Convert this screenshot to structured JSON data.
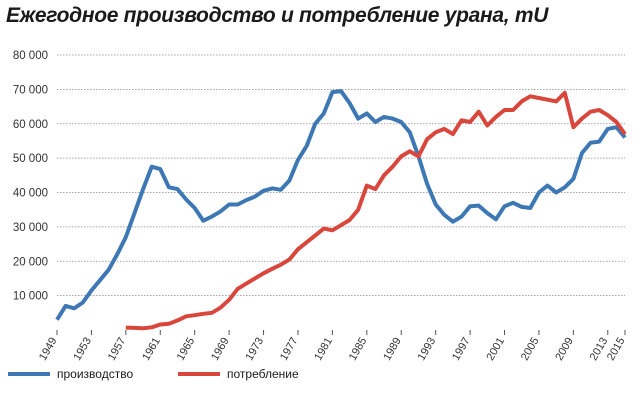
{
  "title": "Ежегодное производство и потребление урана, тU",
  "chart_data": {
    "type": "line",
    "ylim": [
      0,
      80000
    ],
    "xlim": [
      1949,
      2015
    ],
    "yticks": [
      10000,
      20000,
      30000,
      40000,
      50000,
      60000,
      70000,
      80000
    ],
    "ytick_labels": [
      "10 000",
      "20 000",
      "30 000",
      "40 000",
      "50 000",
      "60 000",
      "70 000",
      "80 000"
    ],
    "xticks": [
      "1949",
      "1953",
      "1957",
      "1961",
      "1965",
      "1969",
      "1973",
      "1977",
      "1981",
      "1985",
      "1989",
      "1993",
      "1997",
      "2001",
      "2005",
      "2009",
      "2013",
      "2015"
    ],
    "grid": true,
    "legend_position": "bottom",
    "series": [
      {
        "name": "производство",
        "color": "#3d78b4",
        "points": [
          [
            1949,
            3000
          ],
          [
            1950,
            7000
          ],
          [
            1951,
            6300
          ],
          [
            1952,
            8000
          ],
          [
            1953,
            11500
          ],
          [
            1954,
            14500
          ],
          [
            1955,
            17500
          ],
          [
            1956,
            22000
          ],
          [
            1957,
            27000
          ],
          [
            1958,
            34000
          ],
          [
            1959,
            41000
          ],
          [
            1960,
            47500
          ],
          [
            1961,
            46800
          ],
          [
            1962,
            41500
          ],
          [
            1963,
            41000
          ],
          [
            1964,
            38000
          ],
          [
            1965,
            35500
          ],
          [
            1966,
            31800
          ],
          [
            1967,
            33000
          ],
          [
            1968,
            34500
          ],
          [
            1969,
            36500
          ],
          [
            1970,
            36500
          ],
          [
            1971,
            37800
          ],
          [
            1972,
            38800
          ],
          [
            1973,
            40500
          ],
          [
            1974,
            41200
          ],
          [
            1975,
            40800
          ],
          [
            1976,
            43500
          ],
          [
            1977,
            49500
          ],
          [
            1978,
            53500
          ],
          [
            1979,
            60000
          ],
          [
            1980,
            63000
          ],
          [
            1981,
            69200
          ],
          [
            1982,
            69500
          ],
          [
            1983,
            66000
          ],
          [
            1984,
            61500
          ],
          [
            1985,
            63000
          ],
          [
            1986,
            60500
          ],
          [
            1987,
            62000
          ],
          [
            1988,
            61500
          ],
          [
            1989,
            60500
          ],
          [
            1990,
            57500
          ],
          [
            1991,
            50500
          ],
          [
            1992,
            42500
          ],
          [
            1993,
            36500
          ],
          [
            1994,
            33500
          ],
          [
            1995,
            31500
          ],
          [
            1996,
            33000
          ],
          [
            1997,
            36000
          ],
          [
            1998,
            36200
          ],
          [
            1999,
            34000
          ],
          [
            2000,
            32200
          ],
          [
            2001,
            36000
          ],
          [
            2002,
            37000
          ],
          [
            2003,
            35800
          ],
          [
            2004,
            35500
          ],
          [
            2005,
            40000
          ],
          [
            2006,
            42000
          ],
          [
            2007,
            40000
          ],
          [
            2008,
            41500
          ],
          [
            2009,
            44000
          ],
          [
            2010,
            51500
          ],
          [
            2011,
            54500
          ],
          [
            2012,
            54800
          ],
          [
            2013,
            58500
          ],
          [
            2014,
            59000
          ],
          [
            2015,
            56000
          ]
        ]
      },
      {
        "name": "потребление",
        "color": "#d9463c",
        "points": [
          [
            1957,
            700
          ],
          [
            1958,
            600
          ],
          [
            1959,
            500
          ],
          [
            1960,
            800
          ],
          [
            1961,
            1600
          ],
          [
            1962,
            1800
          ],
          [
            1963,
            2800
          ],
          [
            1964,
            4000
          ],
          [
            1965,
            4300
          ],
          [
            1966,
            4700
          ],
          [
            1967,
            5000
          ],
          [
            1968,
            6500
          ],
          [
            1969,
            8800
          ],
          [
            1970,
            12000
          ],
          [
            1971,
            13500
          ],
          [
            1972,
            15000
          ],
          [
            1973,
            16500
          ],
          [
            1974,
            17800
          ],
          [
            1975,
            19000
          ],
          [
            1976,
            20500
          ],
          [
            1977,
            23500
          ],
          [
            1978,
            25500
          ],
          [
            1979,
            27500
          ],
          [
            1980,
            29500
          ],
          [
            1981,
            29000
          ],
          [
            1982,
            30500
          ],
          [
            1983,
            32000
          ],
          [
            1984,
            35000
          ],
          [
            1985,
            42000
          ],
          [
            1986,
            41000
          ],
          [
            1987,
            45000
          ],
          [
            1988,
            47500
          ],
          [
            1989,
            50500
          ],
          [
            1990,
            52000
          ],
          [
            1991,
            50500
          ],
          [
            1992,
            55500
          ],
          [
            1993,
            57500
          ],
          [
            1994,
            58500
          ],
          [
            1995,
            57000
          ],
          [
            1996,
            61000
          ],
          [
            1997,
            60500
          ],
          [
            1998,
            63500
          ],
          [
            1999,
            59500
          ],
          [
            2000,
            62000
          ],
          [
            2001,
            64000
          ],
          [
            2002,
            64000
          ],
          [
            2003,
            66500
          ],
          [
            2004,
            68000
          ],
          [
            2005,
            67500
          ],
          [
            2006,
            67000
          ],
          [
            2007,
            66500
          ],
          [
            2008,
            69000
          ],
          [
            2009,
            59000
          ],
          [
            2010,
            61500
          ],
          [
            2011,
            63500
          ],
          [
            2012,
            64000
          ],
          [
            2013,
            62500
          ],
          [
            2014,
            60500
          ],
          [
            2015,
            57000
          ]
        ]
      }
    ]
  }
}
